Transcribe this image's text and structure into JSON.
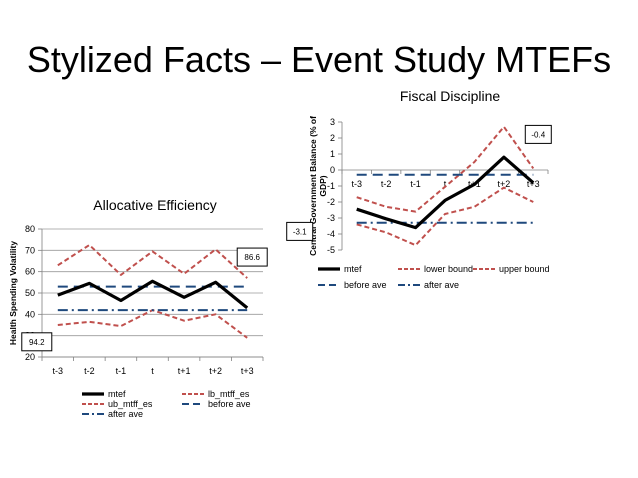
{
  "slide": {
    "title": "Stylized Facts – Event Study MTEFs"
  },
  "chart_data": [
    {
      "type": "line",
      "title": "Allocative Efficiency",
      "ylabel": "Health Spending Volatility",
      "xlabel": "",
      "ylim": [
        20,
        80
      ],
      "yticks": [
        "80",
        "70",
        "60",
        "50",
        "40",
        "30",
        "20"
      ],
      "categories": [
        "t-3",
        "t-2",
        "t-1",
        "t",
        "t+1",
        "t+2",
        "t+3"
      ],
      "grid": true,
      "legend_position": "bottom",
      "series": [
        {
          "name": "mtef",
          "color": "#000000",
          "style": "solid-thick",
          "values": [
            49,
            54.5,
            46.5,
            55.5,
            48,
            55,
            43
          ]
        },
        {
          "name": "lb_mtff_es",
          "color": "#c0504d",
          "style": "dash",
          "values": [
            35,
            36.5,
            34.5,
            42,
            37,
            40,
            29
          ]
        },
        {
          "name": "ub_mtff_es",
          "color": "#c0504d",
          "style": "dash",
          "values": [
            63,
            72.5,
            58.5,
            69.5,
            59,
            70.5,
            57
          ]
        },
        {
          "name": "before ave",
          "color": "#1f497d",
          "style": "longdash",
          "values": [
            53,
            53,
            53,
            53,
            53,
            53,
            53
          ]
        },
        {
          "name": "after ave",
          "color": "#1f497d",
          "style": "dashdot",
          "values": [
            42,
            42,
            42,
            42,
            42,
            42,
            42
          ]
        }
      ],
      "annotations": [
        {
          "text": "86.6",
          "anchor_category": "t+3",
          "anchor_value": 57
        },
        {
          "text": "94.2",
          "anchor_category": "t-3",
          "anchor_value": 29
        }
      ]
    },
    {
      "type": "line",
      "title": "Fiscal Discipline",
      "ylabel": "Central Government Balance (% of GDP)",
      "xlabel": "",
      "ylim": [
        -5,
        3
      ],
      "yticks": [
        "3",
        "2",
        "1",
        "0",
        "-1",
        "-2",
        "-3",
        "-4",
        "-5"
      ],
      "categories": [
        "t-3",
        "t-2",
        "t-1",
        "t",
        "t+1",
        "t+2",
        "t+3"
      ],
      "grid": false,
      "legend_position": "bottom",
      "series": [
        {
          "name": "mtef",
          "color": "#000000",
          "style": "solid-thick",
          "values": [
            -2.45,
            -3.05,
            -3.6,
            -1.9,
            -0.9,
            0.8,
            -0.8
          ]
        },
        {
          "name": "lower bound",
          "color": "#c0504d",
          "style": "dash",
          "values": [
            -3.4,
            -3.9,
            -4.7,
            -2.75,
            -2.3,
            -1.1,
            -2.0
          ]
        },
        {
          "name": "upper bound",
          "color": "#c0504d",
          "style": "dash",
          "values": [
            -1.7,
            -2.3,
            -2.6,
            -1.05,
            0.5,
            2.7,
            0.1
          ]
        },
        {
          "name": "before ave",
          "color": "#1f497d",
          "style": "longdash",
          "values": [
            -0.3,
            -0.3,
            -0.3,
            -0.3,
            -0.3,
            -0.3,
            -0.3
          ]
        },
        {
          "name": "after ave",
          "color": "#1f497d",
          "style": "dashdot",
          "values": [
            -3.3,
            -3.3,
            -3.3,
            -3.3,
            -3.3,
            -3.3,
            -3.3
          ]
        }
      ],
      "annotations": [
        {
          "text": "-0.4",
          "anchor_category": "t+3",
          "anchor_value": 0.1
        },
        {
          "text": "-3.1",
          "anchor_category": "t-3",
          "anchor_value": -3.4
        }
      ]
    }
  ]
}
